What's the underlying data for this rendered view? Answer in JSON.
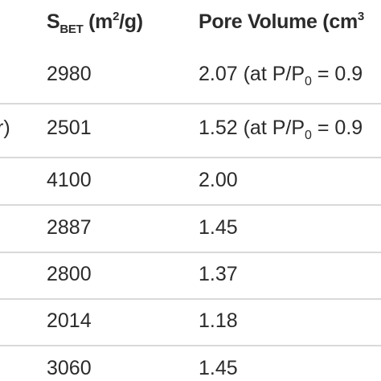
{
  "header": {
    "sbet_main": "S",
    "sbet_sub": "BET",
    "sbet_unit_pre": " (m",
    "sbet_unit_sup": "2",
    "sbet_unit_post": "/g)",
    "pore_pre": "Pore Volume (cm",
    "pore_sup": "3"
  },
  "rows": [
    {
      "left": "",
      "sbet": "2980",
      "pore_pre": "2.07 (at P/P",
      "pore_sub": "0",
      "pore_post": " = 0.9"
    },
    {
      "left": "r)",
      "sbet": "2501",
      "pore_pre": "1.52 (at P/P",
      "pore_sub": "0",
      "pore_post": " = 0.9"
    },
    {
      "left": "",
      "sbet": "4100",
      "pore": "2.00"
    },
    {
      "left": "",
      "sbet": "2887",
      "pore": "1.45"
    },
    {
      "left": "",
      "sbet": "2800",
      "pore": "1.37"
    },
    {
      "left": "",
      "sbet": "2014",
      "pore": "1.18"
    },
    {
      "left": "",
      "sbet": "3060",
      "pore": "1.45"
    }
  ],
  "colors": {
    "text": "#2b2b2b",
    "rule": "#d9d9d9",
    "background": "#ffffff"
  }
}
